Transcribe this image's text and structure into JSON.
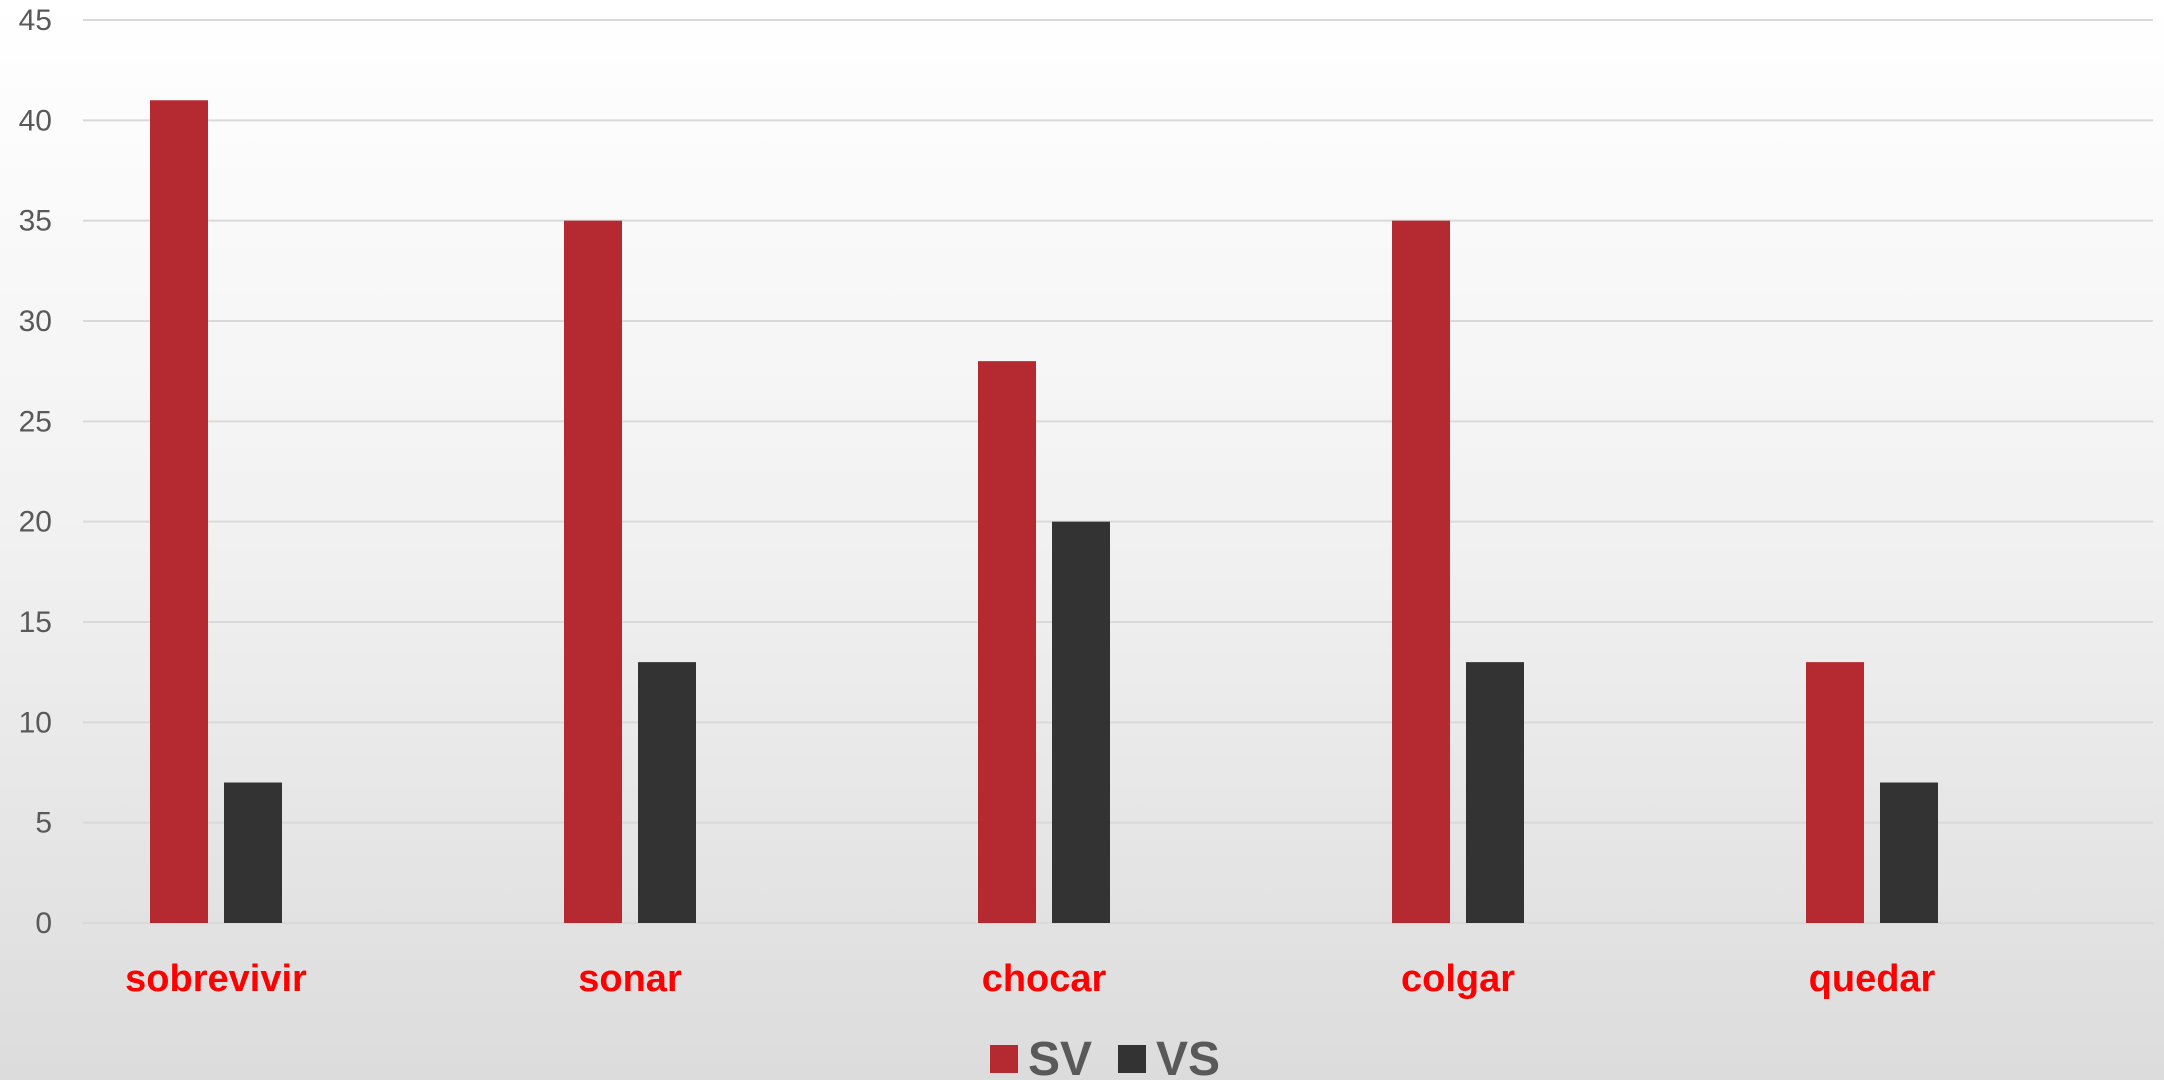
{
  "chart_data": {
    "type": "bar",
    "title": "",
    "xlabel": "",
    "ylabel": "",
    "categories": [
      "sobrevivir",
      "sonar",
      "chocar",
      "colgar",
      "quedar"
    ],
    "series": [
      {
        "name": "SV",
        "values": [
          41,
          35,
          28,
          35,
          13
        ],
        "color": "#b52a30"
      },
      {
        "name": "VS",
        "values": [
          7,
          13,
          20,
          13,
          7
        ],
        "color": "#333333"
      }
    ],
    "ylim": [
      0,
      45
    ],
    "yticks": [
      0,
      5,
      10,
      15,
      20,
      25,
      30,
      35,
      40,
      45
    ],
    "grid": true,
    "legend_position": "bottom",
    "category_label_color": "#ff0000"
  }
}
